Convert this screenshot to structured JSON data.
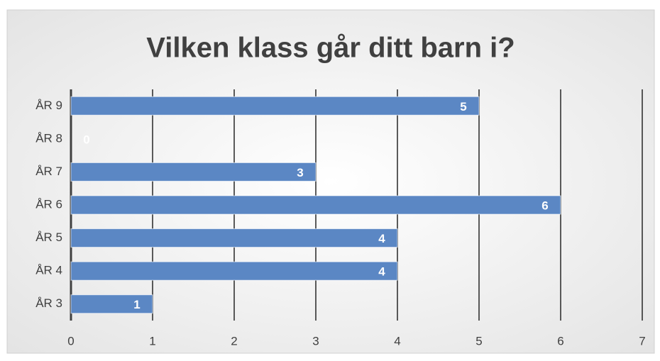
{
  "chart_data": {
    "type": "bar",
    "orientation": "horizontal",
    "title": "Vilken klass går ditt barn i?",
    "categories": [
      "ÅR 9",
      "ÅR 8",
      "ÅR 7",
      "ÅR 6",
      "ÅR 5",
      "ÅR 4",
      "ÅR 3"
    ],
    "values": [
      5,
      0,
      3,
      6,
      4,
      4,
      1
    ],
    "color": "#5b87c4",
    "xlim": [
      0,
      7
    ],
    "xticks": [
      0,
      1,
      2,
      3,
      4,
      5,
      6,
      7
    ],
    "grid": true
  }
}
